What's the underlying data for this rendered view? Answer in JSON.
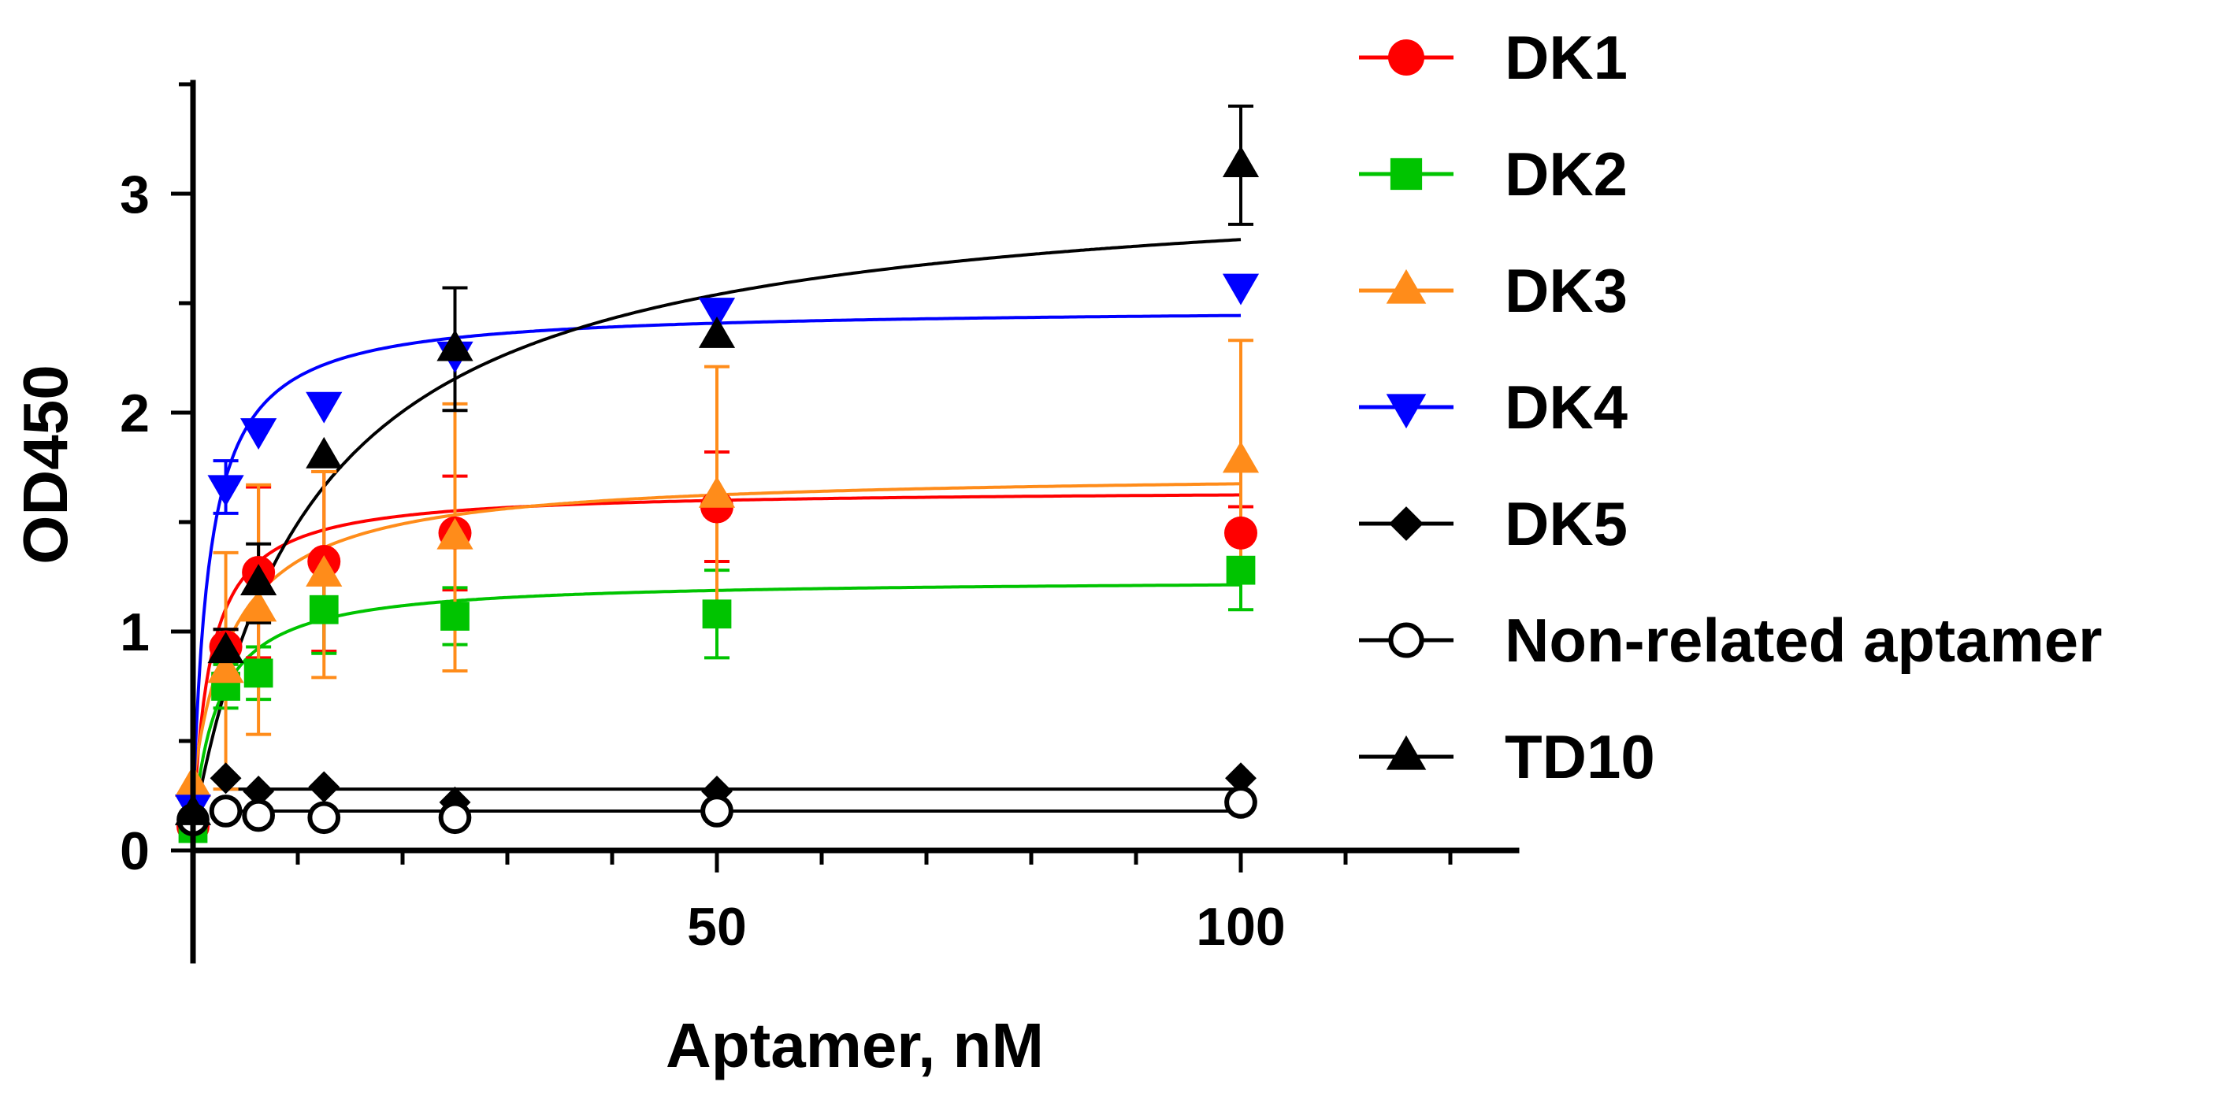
{
  "chart_data": {
    "type": "scatter",
    "title": "",
    "xlabel": "Aptamer, nM",
    "ylabel": "OD450",
    "xlim": [
      0,
      125
    ],
    "ylim": [
      0,
      3.5
    ],
    "x_ticks": [
      {
        "value": 50,
        "label": "50"
      },
      {
        "value": 100,
        "label": "100"
      }
    ],
    "y_ticks": [
      {
        "value": 0,
        "label": "0"
      },
      {
        "value": 1,
        "label": "1"
      },
      {
        "value": 2,
        "label": "2"
      },
      {
        "value": 3,
        "label": "3"
      }
    ],
    "legend_position": "right",
    "fit": "one-site binding curve",
    "series": [
      {
        "name": "DK1",
        "color": "#ff0000",
        "marker": "circle",
        "x": [
          0,
          3.125,
          6.25,
          12.5,
          25,
          50,
          100
        ],
        "y": [
          0.11,
          0.93,
          1.27,
          1.32,
          1.45,
          1.57,
          1.45
        ],
        "err": [
          0,
          0.08,
          0.39,
          0.41,
          0.26,
          0.25,
          0.12
        ],
        "fit_bmax": 1.55,
        "fit_kd": 1.7,
        "fit_c": 0.1
      },
      {
        "name": "DK2",
        "color": "#00c400",
        "marker": "square",
        "x": [
          0,
          3.125,
          6.25,
          12.5,
          25,
          50,
          100
        ],
        "y": [
          0.1,
          0.75,
          0.81,
          1.1,
          1.07,
          1.08,
          1.28
        ],
        "err": [
          0,
          0.1,
          0.12,
          0.2,
          0.13,
          0.2,
          0.18
        ],
        "fit_bmax": 1.14,
        "fit_kd": 2.4,
        "fit_c": 0.1
      },
      {
        "name": "DK3",
        "color": "#ff8c1a",
        "marker": "triangle-up",
        "x": [
          0,
          3.125,
          6.25,
          12.5,
          25,
          50,
          100
        ],
        "y": [
          0.3,
          0.82,
          1.1,
          1.26,
          1.43,
          1.62,
          1.78
        ],
        "err": [
          0,
          0.54,
          0.57,
          0.47,
          0.61,
          0.59,
          0.55
        ],
        "fit_bmax": 1.43,
        "fit_kd": 4.0,
        "fit_c": 0.3
      },
      {
        "name": "DK4",
        "color": "#0000ff",
        "marker": "triangle-down",
        "x": [
          0,
          3.125,
          6.25,
          12.5,
          25,
          50,
          100
        ],
        "y": [
          0.2,
          1.66,
          1.92,
          2.04,
          2.27,
          2.47,
          2.58
        ],
        "err": [
          0,
          0.12,
          0,
          0,
          0,
          0,
          0
        ],
        "fit_bmax": 2.3,
        "fit_kd": 1.6,
        "fit_c": 0.18
      },
      {
        "name": "DK5",
        "color": "#000000",
        "marker": "diamond",
        "x": [
          0,
          3.125,
          6.25,
          12.5,
          25,
          50,
          100
        ],
        "y": [
          0.15,
          0.33,
          0.27,
          0.29,
          0.22,
          0.27,
          0.33
        ],
        "err": [
          0,
          0,
          0,
          0,
          0,
          0,
          0
        ],
        "fit_flat": 0.28
      },
      {
        "name": "Non-related aptamer",
        "color": "#000000",
        "marker": "open-circle",
        "x": [
          0,
          3.125,
          6.25,
          12.5,
          25,
          50,
          100
        ],
        "y": [
          0.14,
          0.18,
          0.16,
          0.15,
          0.15,
          0.18,
          0.22
        ],
        "err": [
          0,
          0,
          0,
          0,
          0,
          0,
          0
        ],
        "fit_flat": 0.18
      },
      {
        "name": "TD10",
        "color": "#000000",
        "marker": "triangle-up",
        "x": [
          0,
          3.125,
          6.25,
          12.5,
          25,
          50,
          100
        ],
        "y": [
          0.17,
          0.91,
          1.22,
          1.8,
          2.29,
          2.35,
          3.13
        ],
        "err": [
          0,
          0.1,
          0.18,
          0,
          0.28,
          0,
          0.27
        ],
        "fit_bmax": 3.0,
        "fit_kd": 11.5,
        "fit_c": 0.1
      }
    ]
  }
}
